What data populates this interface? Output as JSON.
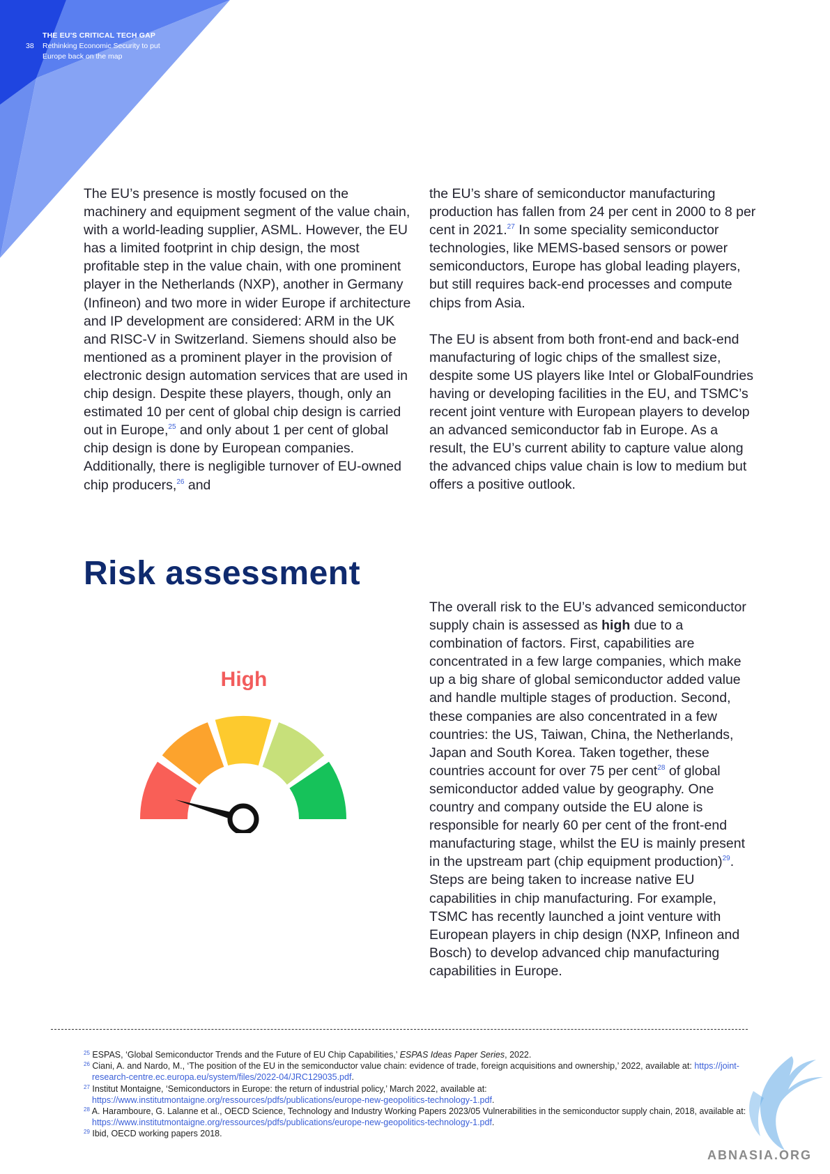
{
  "header": {
    "page_number": "38",
    "title": "THE EU'S CRITICAL TECH GAP",
    "subtitle": "Rethinking Economic Security to put Europe back on the map"
  },
  "intro": {
    "left": {
      "a": "The EU’s presence is mostly focused on the machinery and equipment segment of the value chain, with a world-leading supplier, ASML. However, the EU has a limited footprint in chip design, the most profitable step in the value chain, with one prominent player in the Netherlands (NXP), another in Germany (Infineon) and two more in wider Europe if architecture and IP development are considered: ARM in the UK and RISC-V in Switzerland. Siemens should also be mentioned as a prominent player in the provision of electronic design automation services that are used in chip design. Despite these players, though, only an estimated 10 per cent of global chip design is carried out in Europe,",
      "ref_a": "25",
      "b": " and only about 1 per cent of global chip design is done by European companies. Additionally, there is negligible turnover of EU-owned chip producers,",
      "ref_b": "26",
      "c": " and"
    },
    "right": {
      "p1a": "the EU’s share of semiconductor manufacturing production has fallen from 24 per cent in 2000 to 8 per cent in 2021.",
      "ref": "27",
      "p1b": " In some speciality semiconductor technologies, like MEMS-based sensors or power semiconductors, Europe has global leading players, but still requires back-end processes and compute chips from Asia.",
      "p2": "The EU is absent from both front-end and back-end manufacturing of logic chips of the smallest size, despite some US players like Intel or GlobalFoundries having or developing facilities in the EU, and TSMC’s recent joint venture with European players to develop an advanced semiconductor fab in Europe. As a result, the EU’s current ability to capture value along the advanced chips value chain is low to medium but offers a positive outlook."
    }
  },
  "risk": {
    "heading": "Risk assessment",
    "gauge_label": "High",
    "gauge_colors": [
      "#f95f57",
      "#fca32d",
      "#fdca2e",
      "#c7e07a",
      "#16c25a"
    ],
    "needle_color": "#111111",
    "a": "The overall risk to the EU’s advanced semiconductor supply chain is assessed as ",
    "bold": "high",
    "b": " due to a combination of factors. First, capabilities are concentrated in a few large companies, which make up a big share of global semiconductor added value and handle multiple stages of production. Second, these companies are also concentrated in a few countries: the US, Taiwan, China, the Netherlands, Japan and South Korea. Taken together, these countries account for over 75 per cent",
    "ref_c": "28",
    "c": " of global semiconductor added value by geography. One country and company outside the EU alone is responsible for nearly 60 per cent of the front-end manufacturing stage, whilst the EU is mainly present in the upstream part (chip equipment production)",
    "ref_d": "29",
    "d": ". Steps are being taken to increase native EU capabilities in chip manufacturing. For example, TSMC has recently launched a joint venture with European players in chip design (NXP, Infineon and Bosch) to develop advanced chip manufacturing capabilities in Europe."
  },
  "footnotes": {
    "f25": {
      "num": "25",
      "a": " ESPAS, ‘Global Semiconductor Trends and the Future of EU Chip Capabilities,’ ",
      "em": "ESPAS Ideas Paper Series",
      "b": ", 2022."
    },
    "f26": {
      "num": "26",
      "a": " Ciani, A. and Nardo, M., ‘The position of the EU in the semiconductor value chain: evidence of trade, foreign acquisitions and ownership,’ 2022, available at: ",
      "link": "https://joint-research-centre.ec.europa.eu/system/files/2022-04/JRC129035.pdf",
      "b": "."
    },
    "f27": {
      "num": "27",
      "a": " Institut Montaigne, ‘Semiconductors in Europe: the return of industrial policy,’ March 2022, available at: ",
      "link": "https://www.institutmontaigne.org/ressources/pdfs/publications/europe-new-geopolitics-technology-1.pdf",
      "b": "."
    },
    "f28": {
      "num": "28",
      "a": " A. Haramboure, G. Lalanne et al., OECD Science, Technology and Industry Working Papers 2023/05 Vulnerabilities in the semiconductor supply chain, 2018, available at: ",
      "link": "https://www.institutmontaigne.org/ressources/pdfs/publications/europe-new-geopolitics-technology-1.pdf",
      "b": "."
    },
    "f29": {
      "num": "29",
      "a": " Ibid, OECD working papers 2018."
    }
  },
  "watermark": "ABNASIA.ORG"
}
